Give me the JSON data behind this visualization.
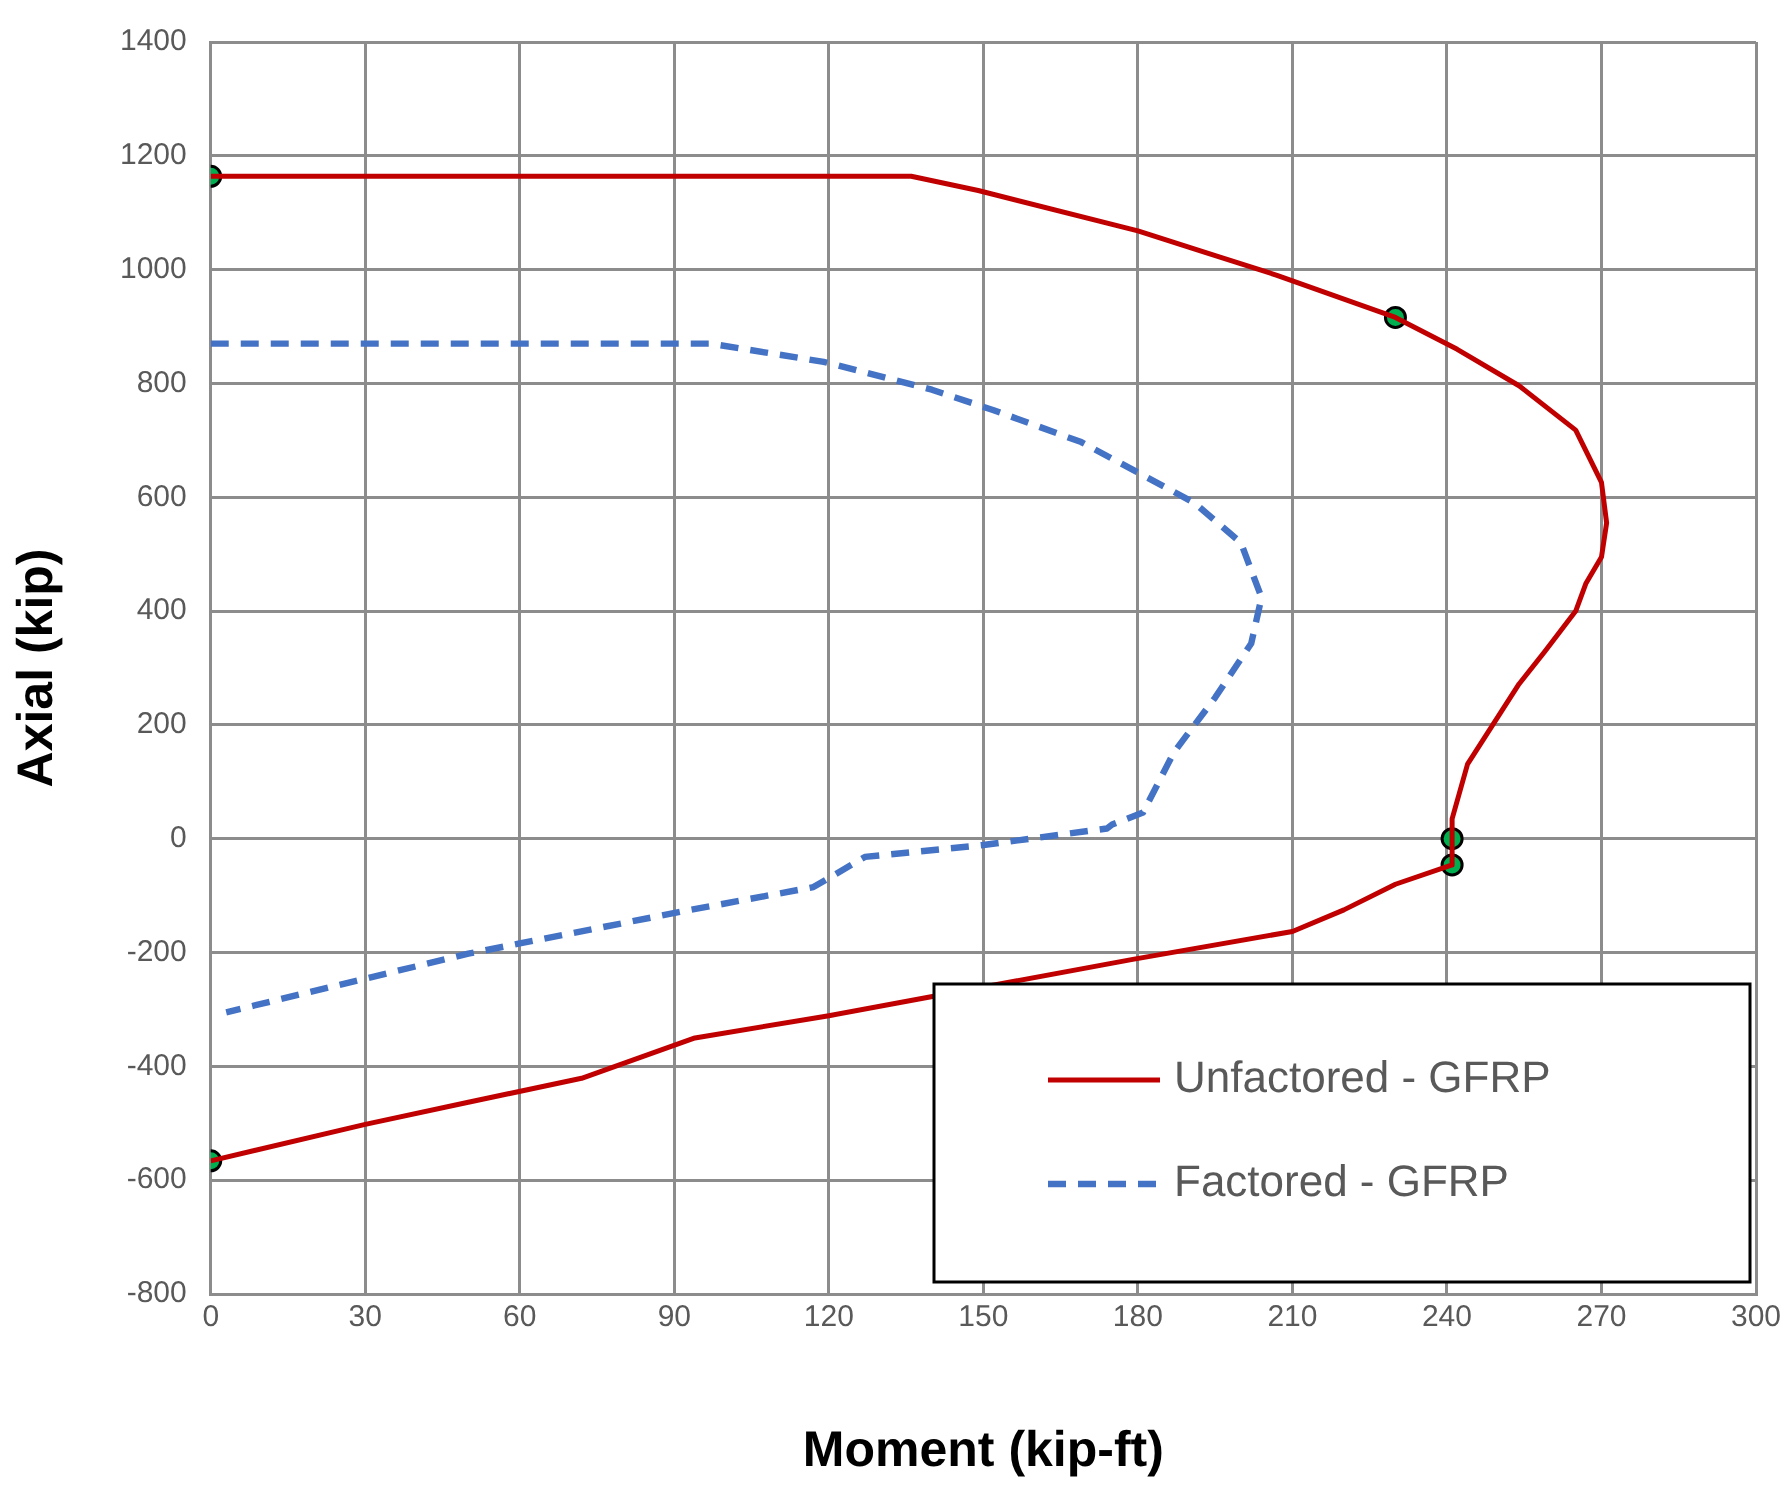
{
  "chart_data": {
    "type": "line",
    "xlabel": "Moment (kip-ft)",
    "ylabel": "Axial (kip)",
    "xlim": [
      0,
      300
    ],
    "xticks": [
      0,
      30,
      60,
      90,
      120,
      150,
      180,
      210,
      240,
      270,
      300
    ],
    "ylim": [
      -800,
      1400
    ],
    "yticks": [
      -800,
      -600,
      -400,
      -200,
      0,
      200,
      400,
      600,
      800,
      1000,
      1200,
      1400
    ],
    "grid": true,
    "legend": "bottom right",
    "marker": "none",
    "series": [
      {
        "name": "Unfactored - GFRP",
        "color": "#c00000",
        "line_style": "solid",
        "x": [
          0,
          136,
          149,
          180,
          207,
          230,
          242,
          254,
          265,
          270,
          271,
          270,
          267,
          265,
          259,
          254,
          244,
          241,
          241,
          230,
          220,
          210,
          179,
          120,
          94,
          72,
          50,
          30,
          0
        ],
        "values": [
          1164,
          1164,
          1139,
          1068,
          990,
          916,
          860,
          796,
          718,
          626,
          555,
          495,
          449,
          400,
          329,
          272,
          131,
          35,
          -46,
          -80,
          -125,
          -163,
          -212,
          -311,
          -350,
          -421,
          -463,
          -502,
          -566
        ]
      },
      {
        "name": "Factored - GFRP",
        "color": "#4472c4",
        "line_style": "dashed",
        "x": [
          0,
          97,
          119,
          140,
          152,
          169,
          191,
          200,
          204,
          202,
          195,
          187,
          181,
          175,
          174,
          150,
          127,
          117,
          92,
          60,
          50,
          3
        ],
        "values": [
          870,
          870,
          838,
          789,
          753,
          697,
          590,
          520,
          424,
          343,
          248,
          152,
          46,
          25,
          18,
          -11,
          -32,
          -85,
          -127,
          -184,
          -202,
          -305
        ]
      },
      {
        "type": "scatter",
        "marker": "circle",
        "color": "#00b050",
        "x": [
          0,
          230,
          241,
          241,
          0
        ],
        "values": [
          1164,
          916,
          0,
          -46,
          -566
        ]
      }
    ]
  }
}
